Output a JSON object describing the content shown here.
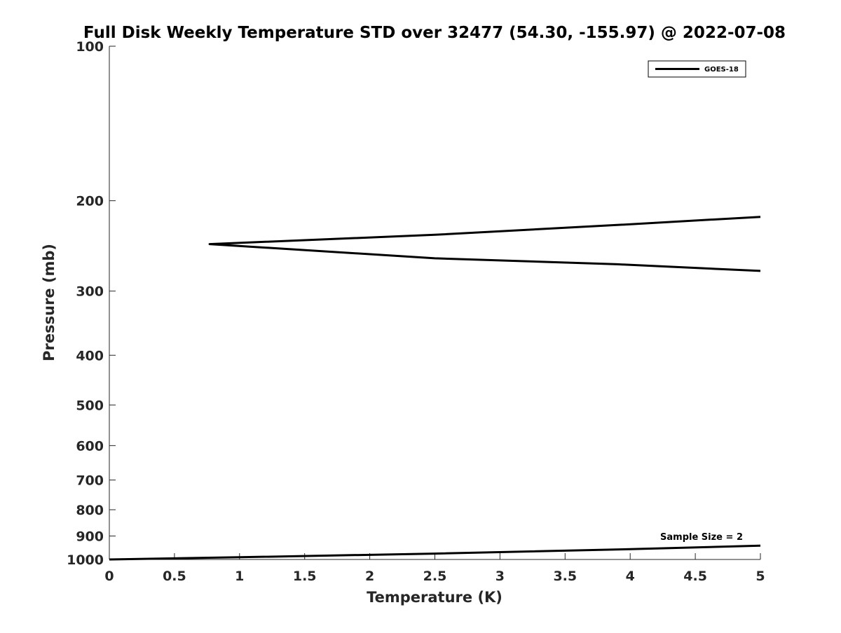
{
  "chart_data": {
    "type": "line",
    "title": "Full Disk Weekly Temperature STD over 32477 (54.30, -155.97) @ 2022-07-08",
    "xlabel": "Temperature (K)",
    "ylabel": "Pressure (mb)",
    "xlim": [
      0,
      5
    ],
    "ylim": [
      100,
      1000
    ],
    "yscale": "log",
    "yreversed": true,
    "x_ticks": [
      0,
      0.5,
      1,
      1.5,
      2,
      2.5,
      3,
      3.5,
      4,
      4.5,
      5
    ],
    "x_tick_labels": [
      "0",
      "0.5",
      "1",
      "1.5",
      "2",
      "2.5",
      "3",
      "3.5",
      "4",
      "4.5",
      "5"
    ],
    "y_ticks": [
      100,
      200,
      300,
      400,
      500,
      600,
      700,
      800,
      900,
      1000
    ],
    "y_tick_labels": [
      "100",
      "200",
      "300",
      "400",
      "500",
      "600",
      "700",
      "800",
      "900",
      "1000"
    ],
    "grid": false,
    "legend": {
      "position": "top-right",
      "entries": [
        "GOES-18"
      ]
    },
    "annotation": "Sample Size = 2",
    "line_color": "#000000",
    "series": [
      {
        "name": "GOES-18",
        "segments": [
          {
            "x": [
              5.0,
              3.9,
              2.5,
              0.77,
              2.5,
              3.9,
              5.0
            ],
            "y": [
              215,
              223,
              233,
              243,
              259,
              266,
              274
            ]
          },
          {
            "x": [
              0,
              1.0,
              2.5,
              4.0,
              5.0
            ],
            "y": [
              1000,
              990,
              974,
              955,
              940
            ]
          }
        ]
      }
    ]
  }
}
